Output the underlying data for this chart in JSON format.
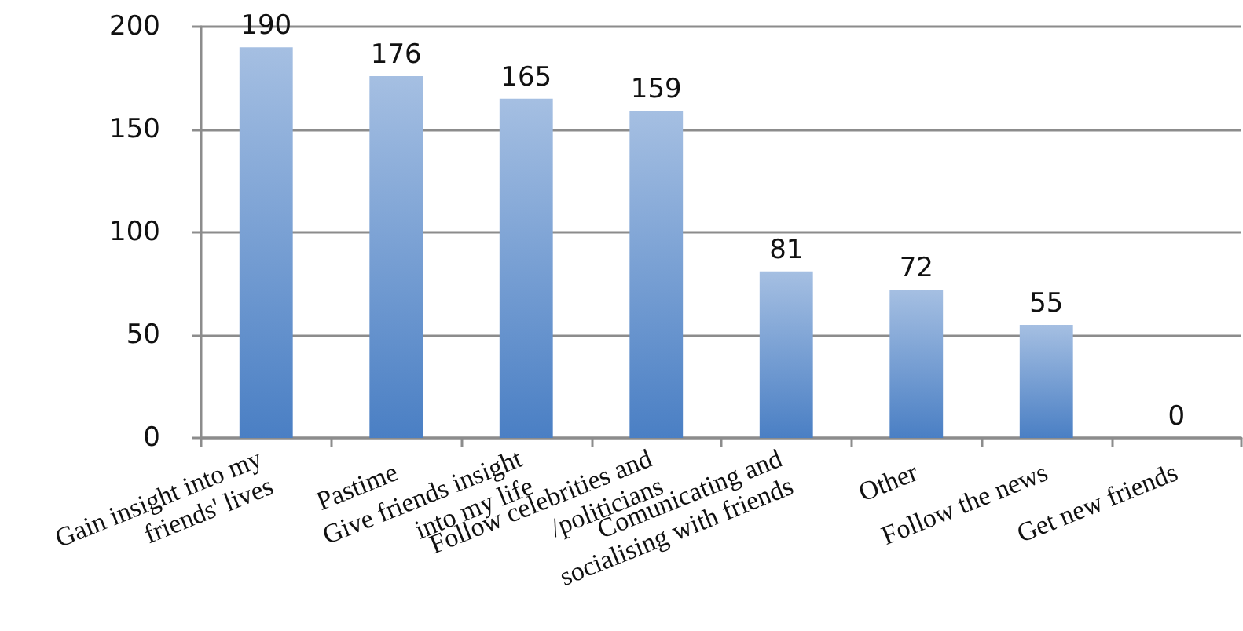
{
  "chart_data": {
    "type": "bar",
    "categories": [
      "Gain insight into my\nfriends' lives",
      "Pastime",
      "Give friends insight\ninto my life",
      "Follow celebrities and\n/politicians",
      "Comunicating and\nsocialising with friends",
      "Other",
      "Follow the news",
      "Get new friends"
    ],
    "values": [
      190,
      176,
      165,
      159,
      81,
      72,
      55,
      0
    ],
    "color": "#4a7fc4",
    "ylim": [
      0,
      200
    ],
    "yticks": [
      0,
      50,
      100,
      150,
      200
    ],
    "grid": "y",
    "data_labels": true
  }
}
